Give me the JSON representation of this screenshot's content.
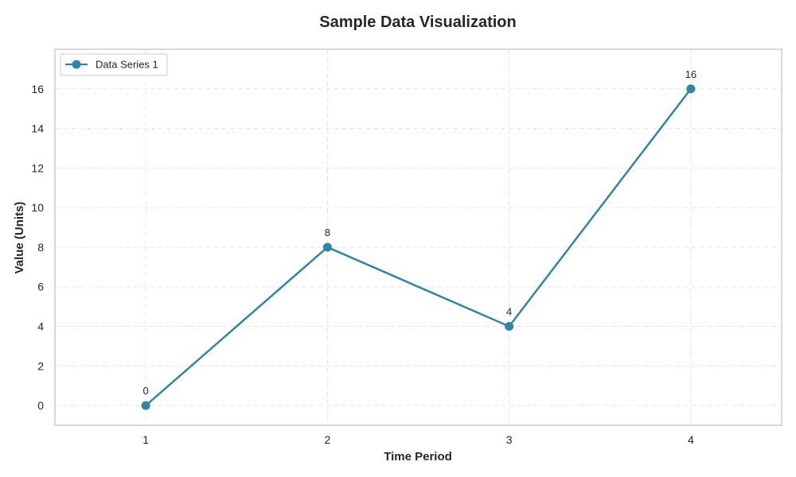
{
  "chart_data": {
    "type": "line",
    "title": "Sample Data Visualization",
    "xlabel": "Time Period",
    "ylabel": "Value (Units)",
    "x": [
      1,
      2,
      3,
      4
    ],
    "xticks": [
      "1",
      "2",
      "3",
      "4"
    ],
    "xlim": [
      0.5,
      4.5
    ],
    "ylim": [
      -1,
      18
    ],
    "yticks": [
      "0",
      "2",
      "4",
      "6",
      "8",
      "10",
      "12",
      "14",
      "16"
    ],
    "grid": true,
    "legend_position": "top-left",
    "series": [
      {
        "name": "Data Series 1",
        "values": [
          0,
          8,
          4,
          16
        ],
        "data_labels": [
          "0",
          "8",
          "4",
          "16"
        ],
        "color": "#2e86a8"
      }
    ]
  }
}
